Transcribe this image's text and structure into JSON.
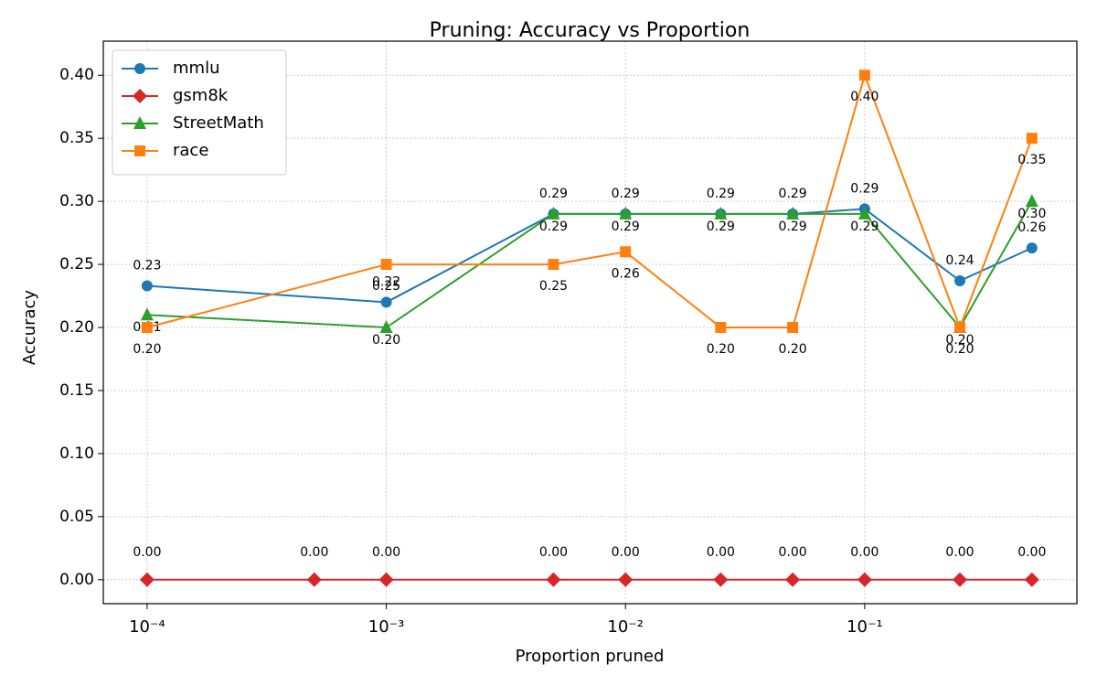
{
  "chart_data": {
    "type": "line",
    "title": "Pruning: Accuracy vs Proportion",
    "x_label": "Proportion pruned",
    "y_label": "Accuracy",
    "x_scale": "log",
    "xlim": [
      6.56e-05,
      0.771
    ],
    "ylim": [
      -0.019,
      0.427
    ],
    "xticks": [
      {
        "value": 0.0001,
        "label": "10⁻⁴"
      },
      {
        "value": 0.001,
        "label": "10⁻³"
      },
      {
        "value": 0.01,
        "label": "10⁻²"
      },
      {
        "value": 0.1,
        "label": "10⁻¹"
      }
    ],
    "yticks": [
      {
        "value": 0,
        "label": "0.00"
      },
      {
        "value": 0.05,
        "label": "0.05"
      },
      {
        "value": 0.1,
        "label": "0.10"
      },
      {
        "value": 0.15,
        "label": "0.15"
      },
      {
        "value": 0.2,
        "label": "0.20"
      },
      {
        "value": 0.25,
        "label": "0.25"
      },
      {
        "value": 0.3,
        "label": "0.30"
      },
      {
        "value": 0.35,
        "label": "0.35"
      },
      {
        "value": 0.4,
        "label": "0.40"
      }
    ],
    "grid": true,
    "legend": "upper-left",
    "series": [
      {
        "name": "mmlu",
        "color": "#1f77b4",
        "marker": "circle",
        "x": [
          0.0001,
          0.001,
          0.005,
          0.01,
          0.025,
          0.05,
          0.1,
          0.25,
          0.5
        ],
        "values": [
          0.233,
          0.22,
          0.29,
          0.29,
          0.29,
          0.29,
          0.294,
          0.237,
          0.263
        ],
        "value_labels": [
          "0.23",
          "0.22",
          "0.29",
          "0.29",
          "0.29",
          "0.29",
          "0.29",
          "0.24",
          "0.26"
        ]
      },
      {
        "name": "gsm8k",
        "color": "#d62728",
        "marker": "diamond",
        "x": [
          0.0001,
          0.0005,
          0.001,
          0.005,
          0.01,
          0.025,
          0.05,
          0.1,
          0.25,
          0.5
        ],
        "values": [
          0,
          0,
          0,
          0,
          0,
          0,
          0,
          0,
          0,
          0
        ],
        "value_labels": [
          "0.00",
          "0.00",
          "0.00",
          "0.00",
          "0.00",
          "0.00",
          "0.00",
          "0.00",
          "0.00",
          "0.00"
        ]
      },
      {
        "name": "StreetMath",
        "color": "#2ca02c",
        "marker": "triangle",
        "x": [
          0.0001,
          0.001,
          0.005,
          0.01,
          0.025,
          0.05,
          0.1,
          0.25,
          0.5
        ],
        "values": [
          0.21,
          0.2,
          0.29,
          0.29,
          0.29,
          0.29,
          0.29,
          0.2,
          0.3
        ],
        "value_labels": [
          "0.21",
          "0.20",
          "0.29",
          "0.29",
          "0.29",
          "0.29",
          "0.29",
          "0.20",
          "0.30"
        ]
      },
      {
        "name": "race",
        "color": "#ff7f0e",
        "marker": "square",
        "x": [
          0.0001,
          0.001,
          0.005,
          0.01,
          0.025,
          0.05,
          0.1,
          0.25,
          0.5
        ],
        "values": [
          0.2,
          0.25,
          0.25,
          0.26,
          0.2,
          0.2,
          0.4,
          0.2,
          0.35
        ],
        "value_labels": [
          "0.20",
          "0.25",
          "0.25",
          "0.26",
          "0.20",
          "0.20",
          "0.40",
          "0.20",
          "0.35"
        ]
      }
    ]
  }
}
